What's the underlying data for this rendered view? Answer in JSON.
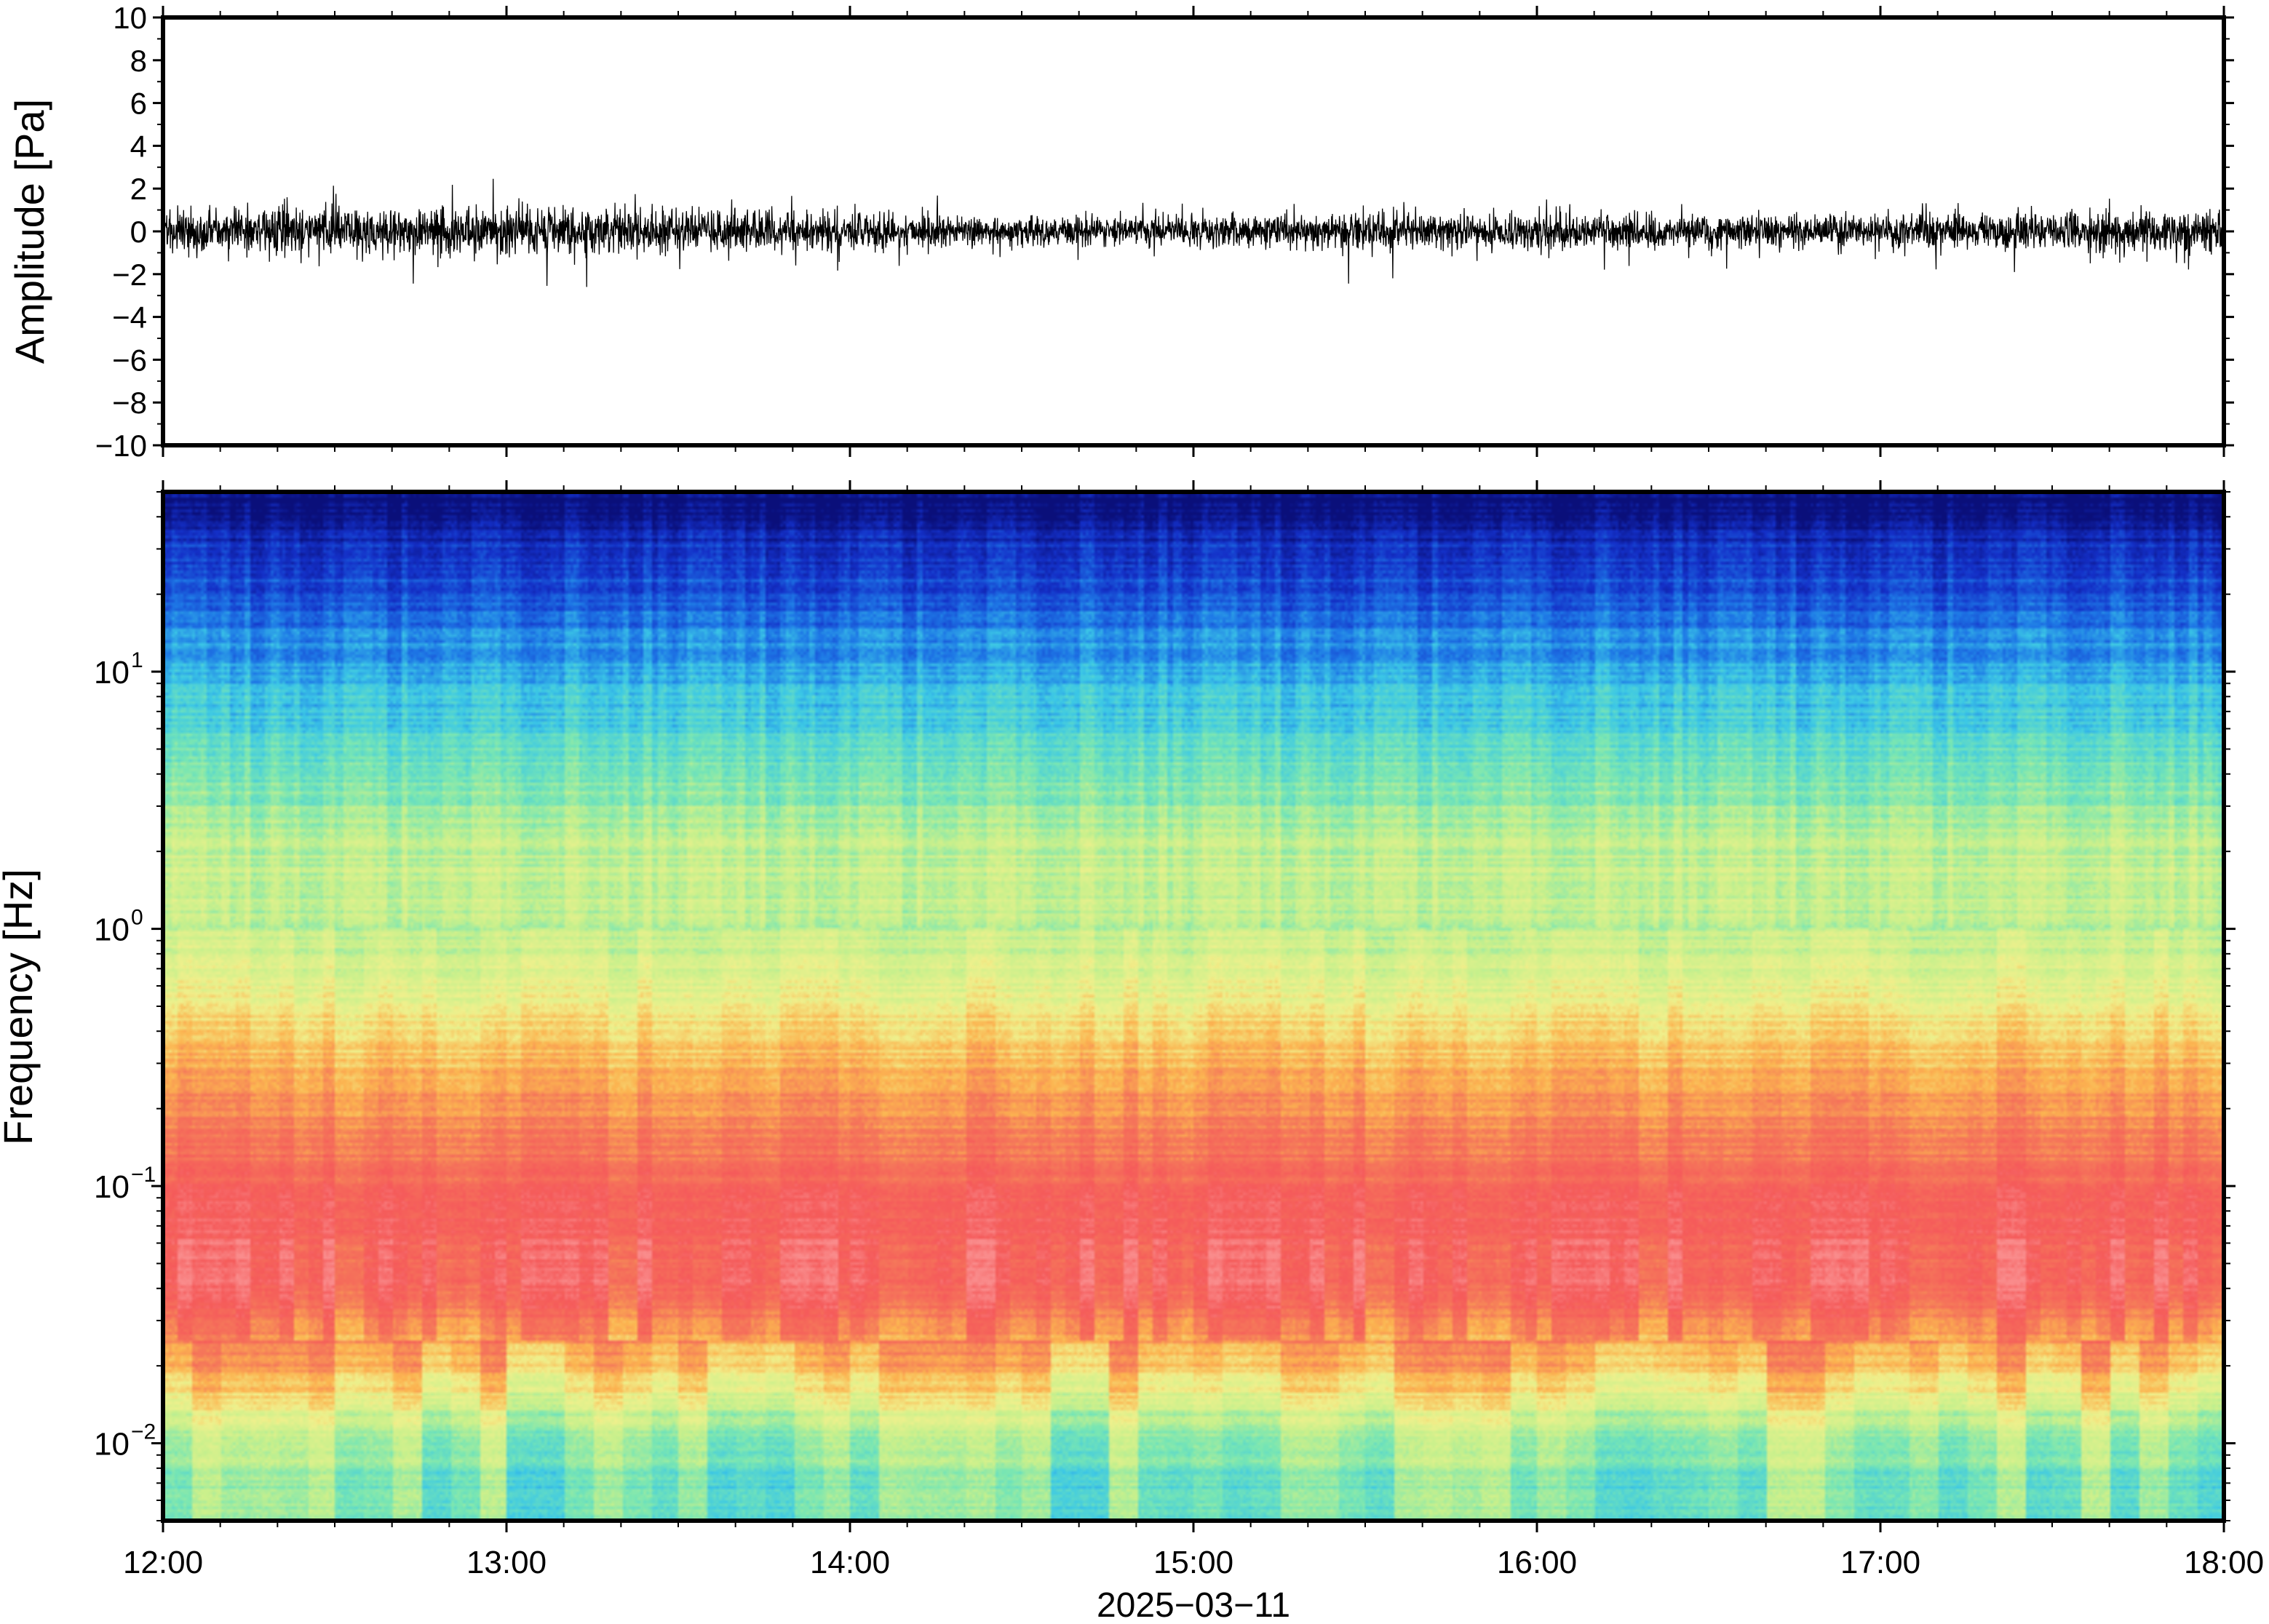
{
  "chart_data": [
    {
      "type": "line",
      "panel": "waveform",
      "ylabel": "Amplitude [Pa]",
      "ylim": [
        -10,
        10
      ],
      "yticks": [
        -10,
        -8,
        -6,
        -4,
        -2,
        0,
        2,
        4,
        6,
        8,
        10
      ],
      "ytick_labels": [
        "−10",
        "−8",
        "−6",
        "−4",
        "−2",
        "0",
        "2",
        "4",
        "6",
        "8",
        "10"
      ],
      "xlim": [
        "12:00",
        "18:00"
      ],
      "line_color": "#000000",
      "envelope": {
        "x": [
          "12:00",
          "12:30",
          "13:00",
          "13:20",
          "13:30",
          "14:00",
          "14:30",
          "15:00",
          "15:30",
          "16:00",
          "16:30",
          "17:00",
          "17:30",
          "18:00"
        ],
        "typical_abs_amplitude": [
          0.6,
          0.65,
          0.6,
          0.7,
          0.55,
          0.5,
          0.45,
          0.4,
          0.5,
          0.5,
          0.45,
          0.45,
          0.55,
          0.6
        ],
        "peak_positive": [
          1.9,
          2.3,
          2.5,
          1.6,
          1.4,
          2.2,
          1.3,
          1.6,
          1.7,
          1.5,
          1.8,
          2.6,
          1.9,
          1.9
        ],
        "peak_negative": [
          -2.5,
          -2.9,
          -2.3,
          -3.2,
          -2.0,
          -2.4,
          -1.8,
          -1.5,
          -2.8,
          -2.2,
          -1.8,
          -2.0,
          -1.9,
          -2.1
        ]
      }
    },
    {
      "type": "heatmap",
      "panel": "spectrogram",
      "xlabel": "2025−03−11",
      "ylabel": "Frequency [Hz]",
      "yscale": "log",
      "ylim": [
        0.005,
        50
      ],
      "xlim": [
        "12:00",
        "18:00"
      ],
      "xticks": [
        "12:00",
        "13:00",
        "14:00",
        "15:00",
        "16:00",
        "17:00",
        "18:00"
      ],
      "yticks": [
        0.01,
        0.1,
        1,
        10
      ],
      "ytick_base": [
        "10",
        "10",
        "10",
        "10"
      ],
      "ytick_exponents": [
        "−2",
        "−1",
        "0",
        "1"
      ],
      "colormap": [
        "#0a0f7a",
        "#1430c8",
        "#1e78e6",
        "#3cc8e6",
        "#78e6b4",
        "#c8f08c",
        "#f0f08c",
        "#fcb450",
        "#f5785a",
        "#f55a5a",
        "#fa8c8c"
      ],
      "dominant_color_by_frequency": {
        "frequency_hz": [
          45,
          30,
          15,
          8,
          4,
          2,
          1,
          0.5,
          0.3,
          0.15,
          0.08,
          0.04,
          0.02,
          0.012,
          0.007
        ],
        "color": [
          "#0a0f7a",
          "#1430c8",
          "#1e78e6",
          "#3cc8e6",
          "#78e6b4",
          "#b8f0a0",
          "#d2f096",
          "#f0f08c",
          "#fcb450",
          "#f5785a",
          "#f55a5a",
          "#f55a5a",
          "#fcb450",
          "#c8f08c",
          "#78e6b4"
        ]
      },
      "notes_visible_features": []
    }
  ]
}
